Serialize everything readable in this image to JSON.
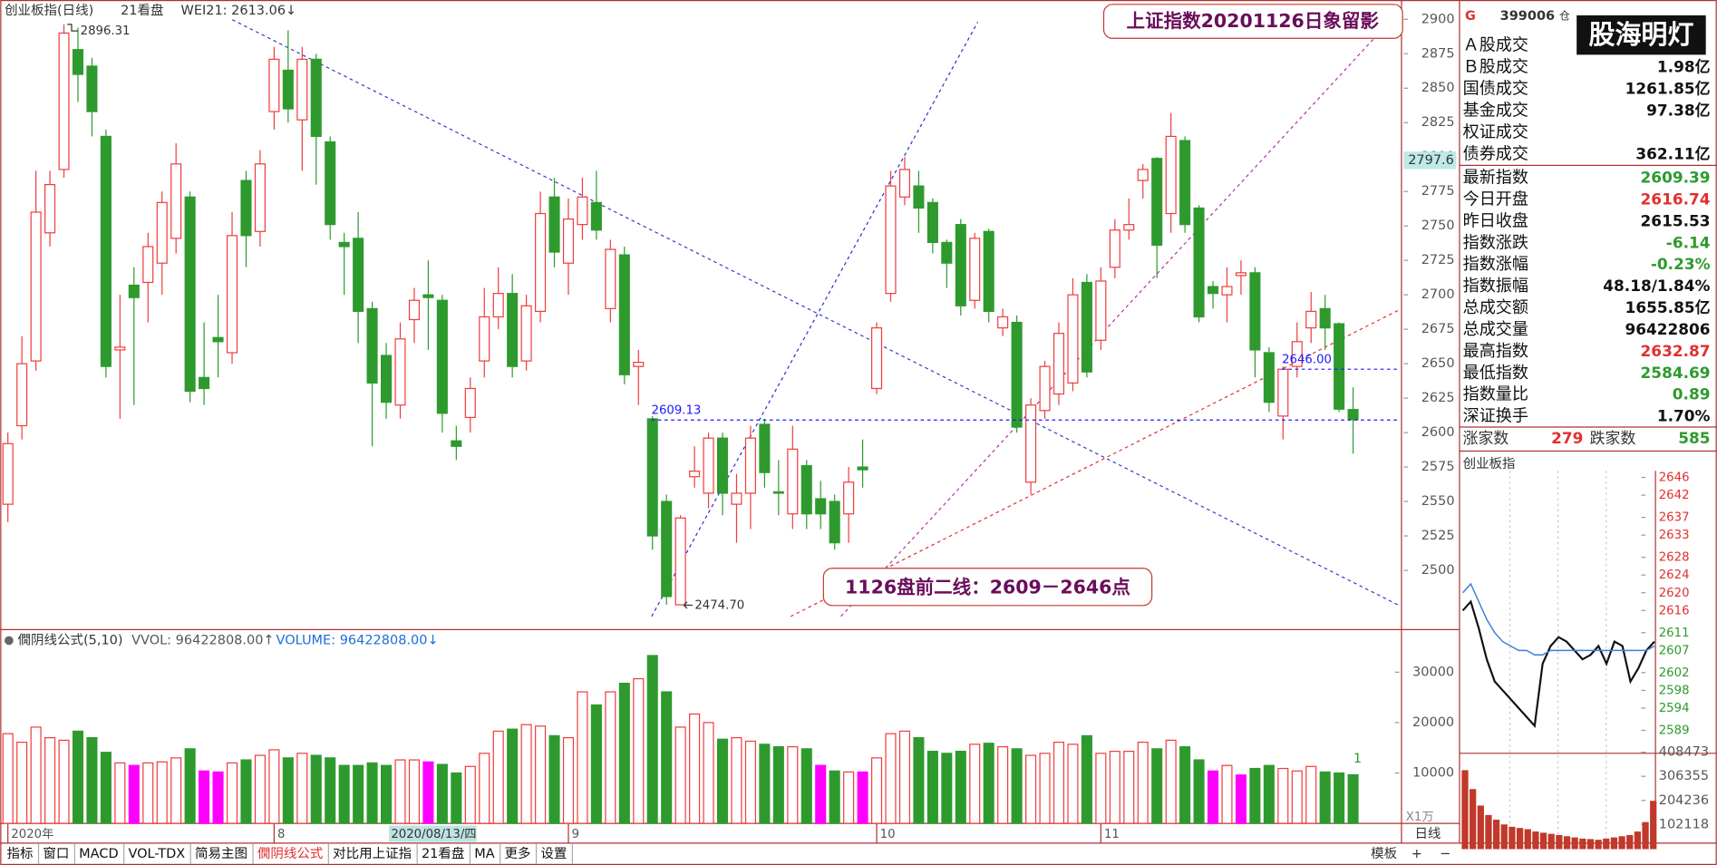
{
  "chart_data": [
    {
      "type": "candlestick",
      "title": "创业板指(日线)",
      "indicators": [
        "21看盘",
        "WEI21: 2613.06↓"
      ],
      "headline": "上证指数20201126日象留影",
      "note": "1126盘前二线：2609－2646点",
      "cursor_date": "2020/08/13/四",
      "cursor_price": 2797.6,
      "max_label": 2896.31,
      "min_label": {
        "value": 2474.7,
        "label": "2474.70"
      },
      "levels": [
        2609.13,
        {
          "value": 2646,
          "label": "2646.00"
        }
      ],
      "level_color": "#1a1aff",
      "up_color": "#f03c3c",
      "down_color": "#2e9a2e",
      "ylim": [
        2457,
        2914
      ],
      "yticks": [
        2500,
        2525,
        2550,
        2575,
        2600,
        2625,
        2650,
        2675,
        2700,
        2725,
        2750,
        2775,
        2800,
        2825,
        2850,
        2875,
        2900
      ],
      "categories": [
        "2020年",
        null,
        null,
        null,
        null,
        null,
        null,
        null,
        null,
        null,
        null,
        null,
        null,
        null,
        null,
        null,
        null,
        null,
        null,
        "8",
        null,
        null,
        null,
        null,
        null,
        null,
        null,
        null,
        null,
        null,
        null,
        null,
        null,
        null,
        null,
        null,
        null,
        null,
        null,
        null,
        "9",
        null,
        null,
        null,
        null,
        null,
        null,
        null,
        null,
        null,
        null,
        null,
        null,
        null,
        null,
        null,
        null,
        null,
        null,
        null,
        null,
        null,
        "10",
        null,
        null,
        null,
        null,
        null,
        null,
        null,
        null,
        null,
        null,
        null,
        null,
        null,
        null,
        null,
        "11",
        null,
        null,
        null,
        null,
        null,
        null,
        null,
        null,
        null,
        null,
        null,
        null,
        null,
        null,
        null,
        null,
        null,
        null
      ],
      "open": [
        2548,
        2605,
        2652,
        2745,
        2791,
        2878,
        2866,
        2815,
        2660,
        2707,
        2709,
        2723,
        2741,
        2771,
        2640,
        2669,
        2658,
        2783,
        2746,
        2833,
        2863,
        2827,
        2871,
        2811,
        2738,
        2741,
        2690,
        2656,
        2620,
        2682,
        2700,
        2696,
        2594,
        2611,
        2652,
        2684,
        2701,
        2652,
        2688,
        2771,
        2723,
        2751,
        2767,
        2690,
        2729,
        2648,
        2610,
        2550,
        2475,
        2568,
        2556,
        2596,
        2548,
        2556,
        2606,
        2557,
        2541,
        2576,
        2552,
        2550,
        2541,
        2575,
        2632,
        2701,
        2771,
        2779,
        2767,
        2738,
        2751,
        2696,
        2746,
        2676,
        2680,
        2564,
        2616,
        2628,
        2636,
        2709,
        2667,
        2720,
        2747,
        2783,
        2799,
        2759,
        2812,
        2763,
        2706,
        2700,
        2714,
        2716,
        2658,
        2612,
        2648,
        2676,
        2690,
        2679,
        2616.74
      ],
      "high": [
        2600,
        2670,
        2790,
        2790,
        2896.31,
        2894,
        2872,
        2820,
        2700,
        2720,
        2745,
        2775,
        2810,
        2775,
        2680,
        2700,
        2760,
        2790,
        2805,
        2880,
        2892,
        2880,
        2875,
        2815,
        2745,
        2760,
        2695,
        2665,
        2680,
        2705,
        2725,
        2700,
        2605,
        2640,
        2705,
        2720,
        2715,
        2700,
        2775,
        2785,
        2770,
        2785,
        2790,
        2740,
        2735,
        2660,
        2612,
        2555,
        2540,
        2590,
        2600,
        2600,
        2570,
        2605,
        2610,
        2580,
        2605,
        2580,
        2565,
        2555,
        2575,
        2595,
        2680,
        2790,
        2800,
        2790,
        2770,
        2740,
        2755,
        2745,
        2748,
        2690,
        2685,
        2625,
        2652,
        2680,
        2712,
        2715,
        2720,
        2755,
        2770,
        2795,
        2800,
        2832,
        2815,
        2765,
        2710,
        2720,
        2725,
        2720,
        2662,
        2648,
        2680,
        2702,
        2700,
        2680,
        2632.87
      ],
      "low": [
        2535,
        2595,
        2645,
        2735,
        2785,
        2840,
        2815,
        2640,
        2610,
        2620,
        2680,
        2700,
        2730,
        2622,
        2620,
        2640,
        2650,
        2720,
        2735,
        2820,
        2825,
        2790,
        2780,
        2740,
        2700,
        2665,
        2590,
        2610,
        2610,
        2665,
        2660,
        2600,
        2580,
        2600,
        2640,
        2675,
        2640,
        2645,
        2680,
        2720,
        2700,
        2740,
        2740,
        2680,
        2635,
        2620,
        2515,
        2475,
        2474.7,
        2560,
        2545,
        2540,
        2520,
        2530,
        2560,
        2540,
        2530,
        2530,
        2530,
        2515,
        2520,
        2560,
        2628,
        2695,
        2765,
        2745,
        2730,
        2705,
        2685,
        2690,
        2680,
        2670,
        2600,
        2555,
        2610,
        2620,
        2630,
        2640,
        2660,
        2712,
        2740,
        2770,
        2712,
        2745,
        2745,
        2680,
        2690,
        2680,
        2700,
        2640,
        2615,
        2595,
        2640,
        2665,
        2660,
        2615,
        2584.69
      ],
      "close": [
        2592,
        2650,
        2760,
        2780,
        2890,
        2860,
        2833,
        2648,
        2662,
        2698,
        2735,
        2767,
        2795,
        2630,
        2632,
        2666,
        2743,
        2743,
        2795,
        2871,
        2835,
        2871,
        2815,
        2751,
        2735,
        2688,
        2636,
        2622,
        2668,
        2696,
        2698,
        2614,
        2590,
        2632,
        2684,
        2701,
        2648,
        2692,
        2759,
        2731,
        2755,
        2771,
        2747,
        2733,
        2642,
        2651,
        2525,
        2481,
        2538,
        2572,
        2596,
        2556,
        2556,
        2596,
        2571,
        2556,
        2588,
        2541,
        2541,
        2520,
        2564,
        2573,
        2676,
        2779,
        2791,
        2763,
        2738,
        2723,
        2692,
        2741,
        2688,
        2684,
        2604,
        2620,
        2648,
        2672,
        2700,
        2644,
        2710,
        2747,
        2751,
        2791,
        2736,
        2815,
        2751,
        2684,
        2701,
        2706,
        2716,
        2660,
        2622,
        2646,
        2666,
        2688,
        2676,
        2617,
        2609.39
      ]
    },
    {
      "type": "bar",
      "title": "僩阴线公式(5,10)",
      "indicators": [
        "VVOL: 96422808.00↑",
        "VOLUME: 96422808.00↓"
      ],
      "unit": "X1万",
      "tag": "1",
      "up_color": "#f03c3c",
      "ylim": [
        0,
        37800
      ],
      "yticks": [
        10000,
        20000,
        30000
      ],
      "values": [
        17800,
        16100,
        19100,
        17000,
        16500,
        18300,
        17000,
        14100,
        12000,
        11500,
        12000,
        12200,
        13000,
        14800,
        10400,
        10200,
        12000,
        12600,
        13500,
        14600,
        13000,
        13900,
        13500,
        13000,
        11500,
        11500,
        12000,
        11500,
        12600,
        12600,
        12200,
        11700,
        10000,
        11300,
        13900,
        18300,
        18700,
        19600,
        19300,
        17400,
        17000,
        26100,
        23500,
        26100,
        27800,
        28700,
        33300,
        26100,
        19100,
        21700,
        20000,
        16700,
        17000,
        16300,
        15700,
        15200,
        15200,
        14800,
        11500,
        10400,
        10200,
        10200,
        13000,
        17800,
        18300,
        17000,
        14300,
        13900,
        14300,
        15700,
        15900,
        15200,
        14800,
        13500,
        13900,
        16100,
        15700,
        17400,
        13900,
        14300,
        14300,
        16100,
        14800,
        16500,
        15200,
        12600,
        10400,
        11500,
        9600,
        10900,
        11500,
        10900,
        10400,
        11300,
        10200,
        10000,
        9642.28
      ],
      "colors": [
        "#f03c3c",
        "#f03c3c",
        "#f03c3c",
        "#f03c3c",
        "#f03c3c",
        "#2e9a2e",
        "#2e9a2e",
        "#2e9a2e",
        "#f03c3c",
        "#ff00ff",
        "#f03c3c",
        "#f03c3c",
        "#f03c3c",
        "#2e9a2e",
        "#ff00ff",
        "#ff00ff",
        "#f03c3c",
        "#2e9a2e",
        "#f03c3c",
        "#f03c3c",
        "#2e9a2e",
        "#f03c3c",
        "#2e9a2e",
        "#2e9a2e",
        "#2e9a2e",
        "#2e9a2e",
        "#2e9a2e",
        "#2e9a2e",
        "#f03c3c",
        "#f03c3c",
        "#ff00ff",
        "#2e9a2e",
        "#2e9a2e",
        "#f03c3c",
        "#f03c3c",
        "#f03c3c",
        "#2e9a2e",
        "#f03c3c",
        "#f03c3c",
        "#2e9a2e",
        "#f03c3c",
        "#f03c3c",
        "#2e9a2e",
        "#f03c3c",
        "#2e9a2e",
        "#f03c3c",
        "#2e9a2e",
        "#2e9a2e",
        "#f03c3c",
        "#f03c3c",
        "#f03c3c",
        "#2e9a2e",
        "#f03c3c",
        "#f03c3c",
        "#2e9a2e",
        "#2e9a2e",
        "#f03c3c",
        "#2e9a2e",
        "#ff00ff",
        "#2e9a2e",
        "#f03c3c",
        "#ff00ff",
        "#f03c3c",
        "#f03c3c",
        "#f03c3c",
        "#2e9a2e",
        "#2e9a2e",
        "#2e9a2e",
        "#2e9a2e",
        "#f03c3c",
        "#2e9a2e",
        "#f03c3c",
        "#2e9a2e",
        "#f03c3c",
        "#f03c3c",
        "#f03c3c",
        "#f03c3c",
        "#2e9a2e",
        "#f03c3c",
        "#f03c3c",
        "#f03c3c",
        "#f03c3c",
        "#2e9a2e",
        "#f03c3c",
        "#2e9a2e",
        "#2e9a2e",
        "#ff00ff",
        "#f03c3c",
        "#ff00ff",
        "#2e9a2e",
        "#2e9a2e",
        "#f03c3c",
        "#f03c3c",
        "#f03c3c",
        "#2e9a2e",
        "#2e9a2e",
        "#2e9a2e"
      ]
    },
    {
      "type": "line",
      "title": "创业板指",
      "up_color": "#e03030",
      "down_color": "#2e9a2e",
      "ylim": [
        2589,
        2646
      ],
      "yticks": [
        2646,
        2642,
        2637,
        2633,
        2628,
        2624,
        2620,
        2616,
        2611,
        2607,
        2602,
        2598,
        2594,
        2589
      ],
      "series": [
        {
          "color": "#111111",
          "values": [
            2616,
            2618,
            2612,
            2605,
            2600,
            2598,
            2596,
            2594,
            2592,
            2590,
            2604,
            2608,
            2610,
            2609,
            2607,
            2605,
            2606,
            2608,
            2604,
            2609,
            2608,
            2600,
            2603,
            2607,
            2609
          ]
        },
        {
          "color": "#3a7fd5",
          "values": [
            2620,
            2622,
            2618,
            2614,
            2611,
            2609,
            2608,
            2607,
            2607,
            2606,
            2606,
            2607,
            2607,
            2607,
            2607,
            2607,
            2607,
            2607,
            2607,
            2607,
            2607,
            2607,
            2607,
            2607,
            2608
          ]
        }
      ]
    },
    {
      "type": "bar",
      "color": "#c0392b",
      "ylim": [
        0,
        408473
      ],
      "yticks": [
        102118,
        204236,
        306355,
        408473
      ],
      "values": [
        330000,
        250000,
        180000,
        140000,
        120000,
        100000,
        90000,
        85000,
        80000,
        70000,
        65000,
        60000,
        55000,
        50000,
        45000,
        40000,
        38000,
        35000,
        40000,
        45000,
        50000,
        55000,
        70000,
        110000,
        200000
      ]
    }
  ],
  "panel": {
    "flag": "G",
    "code": "399006",
    "tag": "仓",
    "logo": "股海明灯",
    "rows": [
      {
        "label": "Ａ股成交"
      },
      {
        "label": "Ｂ股成交",
        "value": "1.98亿",
        "color": "#111"
      },
      {
        "label": "国债成交",
        "value": "1261.85亿",
        "color": "#111"
      },
      {
        "label": "基金成交",
        "value": "97.38亿",
        "color": "#111"
      },
      {
        "label": "权证成交"
      },
      {
        "label": "债券成交",
        "value": "362.11亿",
        "color": "#111"
      },
      {
        "label": "最新指数",
        "value": 2609.39,
        "color": "#2e9a2e"
      },
      {
        "label": "今日开盘",
        "value": 2616.74,
        "color": "#e03030"
      },
      {
        "label": "昨日收盘",
        "value": 2615.53,
        "color": "#111"
      },
      {
        "label": "指数涨跌",
        "value": -6.14,
        "color": "#2e9a2e"
      },
      {
        "label": "指数涨幅",
        "value": "-0.23%",
        "color": "#2e9a2e"
      },
      {
        "label": "指数振幅",
        "value": "48.18/1.84%",
        "color": "#111"
      },
      {
        "label": "总成交额",
        "value": "1655.85亿",
        "color": "#111"
      },
      {
        "label": "总成交量",
        "value": 96422806,
        "color": "#111"
      },
      {
        "label": "最高指数",
        "value": 2632.87,
        "color": "#e03030"
      },
      {
        "label": "最低指数",
        "value": 2584.69,
        "color": "#2e9a2e"
      },
      {
        "label": "指数量比",
        "value": 0.89,
        "color": "#2e9a2e"
      },
      {
        "label": "深证换手",
        "value": "1.70%",
        "color": "#111"
      }
    ],
    "advance_label": "涨家数",
    "advance": 279,
    "decline_label": "跌家数",
    "decline": 585
  },
  "toolbar": {
    "tabs": [
      {
        "label": "指标"
      },
      {
        "label": "窗口"
      },
      {
        "label": "MACD"
      },
      {
        "label": "VOL-TDX"
      },
      {
        "label": "简易主图"
      },
      {
        "label": "僩阴线公式",
        "active": true
      },
      {
        "label": "对比用上证指"
      },
      {
        "label": "21看盘"
      },
      {
        "label": "MA"
      },
      {
        "label": "更多"
      },
      {
        "label": "设置"
      }
    ],
    "right": "模板",
    "period": "日线",
    "plus": "+",
    "minus": "−"
  }
}
